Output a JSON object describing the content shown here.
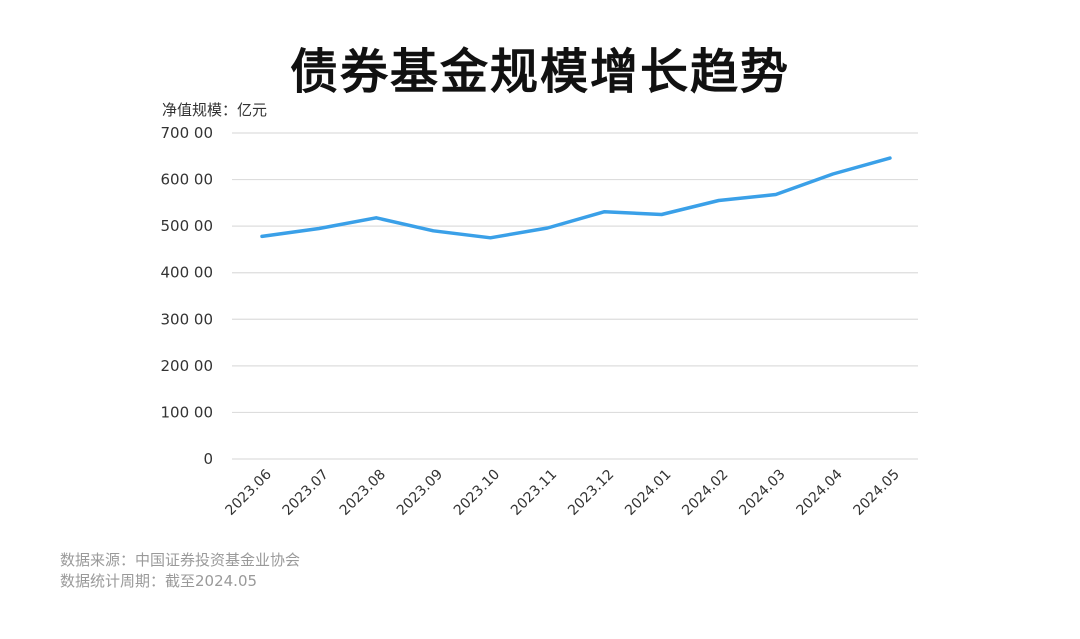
{
  "title": "债券基金规模增长趋势",
  "notes": {
    "source": "数据来源：中国证券投资基金业协会",
    "period": "数据统计周期：截至2024.05"
  },
  "colors": {
    "line": "#3aa0e8",
    "grid": "#dddddd"
  },
  "chart_data": {
    "type": "line",
    "title": "债券基金规模增长趋势",
    "xlabel": "",
    "ylabel": "净值规模：亿元",
    "ylim": [
      0,
      70000
    ],
    "yticks": [
      0,
      10000,
      20000,
      30000,
      40000,
      50000,
      60000,
      70000
    ],
    "ytick_labels": [
      "0",
      "100 00",
      "200 00",
      "300 00",
      "400 00",
      "500 00",
      "600 00",
      "700 00"
    ],
    "grid": true,
    "categories": [
      "2023.06",
      "2023.07",
      "2023.08",
      "2023.09",
      "2023.10",
      "2023.11",
      "2023.12",
      "2024.01",
      "2024.02",
      "2024.03",
      "2024.04",
      "2024.05"
    ],
    "series": [
      {
        "values": [
          47800,
          49500,
          51800,
          49000,
          47500,
          49600,
          53100,
          52500,
          55500,
          56800,
          61200,
          64600
        ]
      }
    ]
  }
}
